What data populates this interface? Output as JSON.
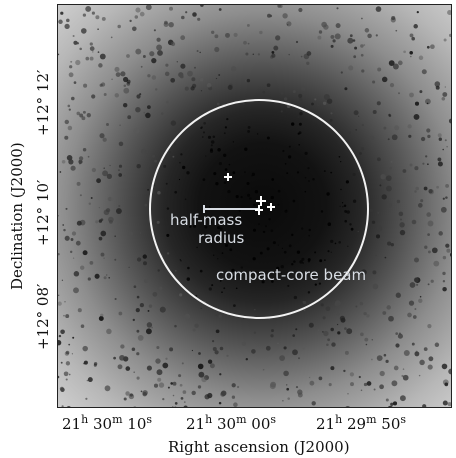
{
  "image": {
    "description_labels": {
      "half_mass": [
        "half-mass",
        "radius"
      ],
      "beam": "compact-core beam"
    }
  },
  "axes": {
    "x_title": "Right ascension (J2000)",
    "y_title": "Declination (J2000)",
    "x_ticks": [
      {
        "h": "21",
        "m": "30",
        "s": "10"
      },
      {
        "h": "21",
        "m": "30",
        "s": "00"
      },
      {
        "h": "21",
        "m": "29",
        "s": "50"
      }
    ],
    "y_ticks": [
      {
        "label": "+12° 12′"
      },
      {
        "label": "+12° 10′"
      },
      {
        "label": "+12° 08′"
      }
    ],
    "unit_h": "h",
    "unit_m": "m",
    "unit_s": "s"
  }
}
